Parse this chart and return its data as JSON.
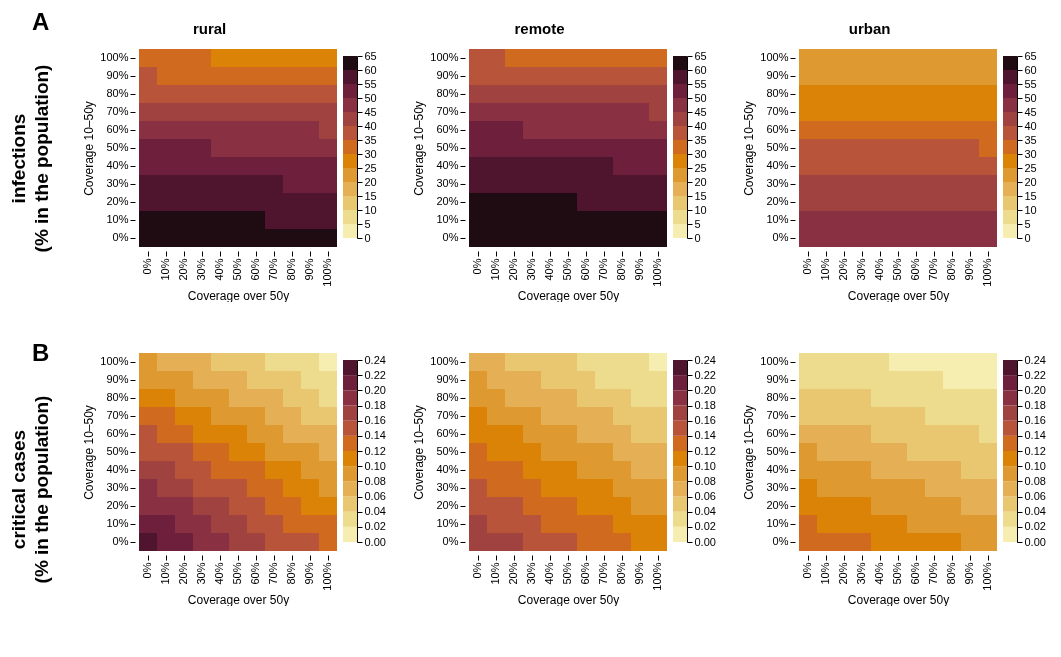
{
  "chart_data": [
    {
      "type": "heatmap",
      "title": "rural",
      "xlabel": "Coverage over 50y",
      "ylabel": "Coverage 10–50y",
      "annotations": [
        "A",
        "infections",
        "(% in the population)"
      ],
      "categories": [
        "0%",
        "10%",
        "20%",
        "30%",
        "40%",
        "50%",
        "60%",
        "70%",
        "80%",
        "90%",
        "100%"
      ],
      "y_categories": [
        "100%",
        "90%",
        "80%",
        "70%",
        "60%",
        "50%",
        "40%",
        "30%",
        "20%",
        "10%",
        "0%"
      ],
      "clim": [
        0,
        65
      ],
      "cticks": [
        0,
        5,
        10,
        15,
        20,
        25,
        30,
        35,
        40,
        45,
        50,
        55,
        60,
        65
      ],
      "colors": [
        "#f5eeb0",
        "#eedc8e",
        "#e9c670",
        "#e5b055",
        "#de9a30",
        "#da8307",
        "#d06a1e",
        "#b8543a",
        "#a0423f",
        "#8a3043",
        "#6d1f3b",
        "#4f142e",
        "#1f0c13"
      ],
      "cells": [
        [
          33,
          33,
          33,
          33,
          28,
          28,
          28,
          28,
          28,
          28,
          28
        ],
        [
          38,
          33,
          33,
          33,
          33,
          33,
          33,
          33,
          33,
          33,
          33
        ],
        [
          38,
          38,
          38,
          38,
          38,
          38,
          38,
          38,
          38,
          38,
          38
        ],
        [
          43,
          43,
          43,
          43,
          43,
          43,
          43,
          43,
          43,
          43,
          43
        ],
        [
          48,
          48,
          48,
          48,
          48,
          48,
          48,
          48,
          48,
          48,
          43
        ],
        [
          53,
          53,
          53,
          53,
          48,
          48,
          48,
          48,
          48,
          48,
          48
        ],
        [
          53,
          53,
          53,
          53,
          53,
          53,
          53,
          53,
          53,
          53,
          53
        ],
        [
          58,
          58,
          58,
          58,
          58,
          58,
          58,
          58,
          53,
          53,
          53
        ],
        [
          58,
          58,
          58,
          58,
          58,
          58,
          58,
          58,
          58,
          58,
          58
        ],
        [
          63,
          63,
          63,
          63,
          63,
          63,
          63,
          58,
          58,
          58,
          58
        ],
        [
          63,
          63,
          63,
          63,
          63,
          63,
          63,
          63,
          63,
          63,
          63
        ]
      ]
    },
    {
      "type": "heatmap",
      "title": "remote",
      "xlabel": "Coverage over 50y",
      "ylabel": "Coverage 10–50y",
      "categories": [
        "0%",
        "10%",
        "20%",
        "30%",
        "40%",
        "50%",
        "60%",
        "70%",
        "80%",
        "90%",
        "100%"
      ],
      "y_categories": [
        "100%",
        "90%",
        "80%",
        "70%",
        "60%",
        "50%",
        "40%",
        "30%",
        "20%",
        "10%",
        "0%"
      ],
      "clim": [
        0,
        65
      ],
      "cticks": [
        0,
        5,
        10,
        15,
        20,
        25,
        30,
        35,
        40,
        45,
        50,
        55,
        60,
        65
      ],
      "colors": [
        "#f5eeb0",
        "#eedc8e",
        "#e9c670",
        "#e5b055",
        "#de9a30",
        "#da8307",
        "#d06a1e",
        "#b8543a",
        "#a0423f",
        "#8a3043",
        "#6d1f3b",
        "#4f142e",
        "#1f0c13"
      ],
      "cells": [
        [
          38,
          38,
          33,
          33,
          33,
          33,
          33,
          33,
          33,
          33,
          33
        ],
        [
          38,
          38,
          38,
          38,
          38,
          38,
          38,
          38,
          38,
          38,
          38
        ],
        [
          43,
          43,
          43,
          43,
          43,
          43,
          43,
          43,
          43,
          43,
          43
        ],
        [
          48,
          48,
          48,
          48,
          48,
          48,
          48,
          48,
          48,
          48,
          43
        ],
        [
          53,
          53,
          53,
          48,
          48,
          48,
          48,
          48,
          48,
          48,
          48
        ],
        [
          53,
          53,
          53,
          53,
          53,
          53,
          53,
          53,
          53,
          53,
          53
        ],
        [
          58,
          58,
          58,
          58,
          58,
          58,
          58,
          58,
          53,
          53,
          53
        ],
        [
          58,
          58,
          58,
          58,
          58,
          58,
          58,
          58,
          58,
          58,
          58
        ],
        [
          63,
          63,
          63,
          63,
          63,
          63,
          58,
          58,
          58,
          58,
          58
        ],
        [
          63,
          63,
          63,
          63,
          63,
          63,
          63,
          63,
          63,
          63,
          63
        ],
        [
          63,
          63,
          63,
          63,
          63,
          63,
          63,
          63,
          63,
          63,
          63
        ]
      ]
    },
    {
      "type": "heatmap",
      "title": "urban",
      "xlabel": "Coverage over 50y",
      "ylabel": "Coverage 10–50y",
      "categories": [
        "0%",
        "10%",
        "20%",
        "30%",
        "40%",
        "50%",
        "60%",
        "70%",
        "80%",
        "90%",
        "100%"
      ],
      "y_categories": [
        "100%",
        "90%",
        "80%",
        "70%",
        "60%",
        "50%",
        "40%",
        "30%",
        "20%",
        "10%",
        "0%"
      ],
      "clim": [
        0,
        65
      ],
      "cticks": [
        0,
        5,
        10,
        15,
        20,
        25,
        30,
        35,
        40,
        45,
        50,
        55,
        60,
        65
      ],
      "colors": [
        "#f5eeb0",
        "#eedc8e",
        "#e9c670",
        "#e5b055",
        "#de9a30",
        "#da8307",
        "#d06a1e",
        "#b8543a",
        "#a0423f",
        "#8a3043",
        "#6d1f3b",
        "#4f142e",
        "#1f0c13"
      ],
      "cells": [
        [
          23,
          23,
          23,
          23,
          23,
          23,
          23,
          23,
          23,
          23,
          23
        ],
        [
          23,
          23,
          23,
          23,
          23,
          23,
          23,
          23,
          23,
          23,
          23
        ],
        [
          28,
          28,
          28,
          28,
          28,
          28,
          28,
          28,
          28,
          28,
          28
        ],
        [
          28,
          28,
          28,
          28,
          28,
          28,
          28,
          28,
          28,
          28,
          28
        ],
        [
          33,
          33,
          33,
          33,
          33,
          33,
          33,
          33,
          33,
          33,
          33
        ],
        [
          38,
          38,
          38,
          38,
          38,
          38,
          38,
          38,
          38,
          38,
          33
        ],
        [
          38,
          38,
          38,
          38,
          38,
          38,
          38,
          38,
          38,
          38,
          38
        ],
        [
          43,
          43,
          43,
          43,
          43,
          43,
          43,
          43,
          43,
          43,
          43
        ],
        [
          43,
          43,
          43,
          43,
          43,
          43,
          43,
          43,
          43,
          43,
          43
        ],
        [
          48,
          48,
          48,
          48,
          48,
          48,
          48,
          48,
          48,
          48,
          48
        ],
        [
          48,
          48,
          48,
          48,
          48,
          48,
          48,
          48,
          48,
          48,
          48
        ]
      ]
    },
    {
      "type": "heatmap",
      "xlabel": "Coverage over 50y",
      "ylabel": "Coverage 10–50y",
      "annotations": [
        "B",
        "critical cases",
        "(% in the population)"
      ],
      "categories": [
        "0%",
        "10%",
        "20%",
        "30%",
        "40%",
        "50%",
        "60%",
        "70%",
        "80%",
        "90%",
        "100%"
      ],
      "y_categories": [
        "100%",
        "90%",
        "80%",
        "70%",
        "60%",
        "50%",
        "40%",
        "30%",
        "20%",
        "10%",
        "0%"
      ],
      "clim": [
        0,
        0.24
      ],
      "cticks": [
        {
          "value": 0,
          "label": "0.00"
        },
        0.02,
        0.04,
        0.06,
        0.08,
        {
          "value": 0.1,
          "label": "0.10"
        },
        0.12,
        0.14,
        0.16,
        0.18,
        {
          "value": 0.2,
          "label": "0.20"
        },
        0.22,
        0.24
      ],
      "colors": [
        "#f5eeb0",
        "#eedc8e",
        "#e9c670",
        "#e5b055",
        "#de9a30",
        "#da8307",
        "#d06a1e",
        "#b8543a",
        "#a0423f",
        "#8a3043",
        "#6d1f3b",
        "#4f142e"
      ],
      "cells": [
        [
          0.09,
          0.07,
          0.07,
          0.07,
          0.05,
          0.05,
          0.05,
          0.03,
          0.03,
          0.03,
          0.01
        ],
        [
          0.09,
          0.09,
          0.09,
          0.07,
          0.07,
          0.07,
          0.05,
          0.05,
          0.05,
          0.03,
          0.03
        ],
        [
          0.11,
          0.11,
          0.09,
          0.09,
          0.09,
          0.07,
          0.07,
          0.07,
          0.05,
          0.05,
          0.03
        ],
        [
          0.13,
          0.13,
          0.11,
          0.11,
          0.09,
          0.09,
          0.09,
          0.07,
          0.07,
          0.05,
          0.05
        ],
        [
          0.15,
          0.13,
          0.13,
          0.11,
          0.11,
          0.11,
          0.09,
          0.09,
          0.07,
          0.07,
          0.07
        ],
        [
          0.15,
          0.15,
          0.15,
          0.13,
          0.13,
          0.11,
          0.11,
          0.09,
          0.09,
          0.09,
          0.07
        ],
        [
          0.17,
          0.17,
          0.15,
          0.15,
          0.13,
          0.13,
          0.13,
          0.11,
          0.11,
          0.09,
          0.09
        ],
        [
          0.19,
          0.17,
          0.17,
          0.15,
          0.15,
          0.15,
          0.13,
          0.13,
          0.11,
          0.11,
          0.09
        ],
        [
          0.19,
          0.19,
          0.19,
          0.17,
          0.17,
          0.15,
          0.15,
          0.13,
          0.13,
          0.11,
          0.11
        ],
        [
          0.21,
          0.21,
          0.19,
          0.19,
          0.17,
          0.17,
          0.15,
          0.15,
          0.13,
          0.13,
          0.13
        ],
        [
          0.23,
          0.21,
          0.21,
          0.19,
          0.19,
          0.17,
          0.17,
          0.15,
          0.15,
          0.15,
          0.13
        ]
      ]
    },
    {
      "type": "heatmap",
      "xlabel": "Coverage over 50y",
      "ylabel": "Coverage 10–50y",
      "categories": [
        "0%",
        "10%",
        "20%",
        "30%",
        "40%",
        "50%",
        "60%",
        "70%",
        "80%",
        "90%",
        "100%"
      ],
      "y_categories": [
        "100%",
        "90%",
        "80%",
        "70%",
        "60%",
        "50%",
        "40%",
        "30%",
        "20%",
        "10%",
        "0%"
      ],
      "clim": [
        0,
        0.24
      ],
      "cticks": [
        {
          "value": 0,
          "label": "0.00"
        },
        0.02,
        0.04,
        0.06,
        0.08,
        {
          "value": 0.1,
          "label": "0.10"
        },
        0.12,
        0.14,
        0.16,
        0.18,
        {
          "value": 0.2,
          "label": "0.20"
        },
        0.22,
        0.24
      ],
      "colors": [
        "#f5eeb0",
        "#eedc8e",
        "#e9c670",
        "#e5b055",
        "#de9a30",
        "#da8307",
        "#d06a1e",
        "#b8543a",
        "#a0423f",
        "#8a3043",
        "#6d1f3b",
        "#4f142e"
      ],
      "cells": [
        [
          0.07,
          0.07,
          0.05,
          0.05,
          0.05,
          0.05,
          0.03,
          0.03,
          0.03,
          0.03,
          0.01
        ],
        [
          0.09,
          0.07,
          0.07,
          0.07,
          0.05,
          0.05,
          0.05,
          0.03,
          0.03,
          0.03,
          0.03
        ],
        [
          0.09,
          0.09,
          0.07,
          0.07,
          0.07,
          0.07,
          0.05,
          0.05,
          0.05,
          0.03,
          0.03
        ],
        [
          0.11,
          0.09,
          0.09,
          0.09,
          0.07,
          0.07,
          0.07,
          0.07,
          0.05,
          0.05,
          0.05
        ],
        [
          0.11,
          0.11,
          0.11,
          0.09,
          0.09,
          0.09,
          0.07,
          0.07,
          0.07,
          0.05,
          0.05
        ],
        [
          0.13,
          0.11,
          0.11,
          0.11,
          0.09,
          0.09,
          0.09,
          0.09,
          0.07,
          0.07,
          0.07
        ],
        [
          0.13,
          0.13,
          0.13,
          0.11,
          0.11,
          0.11,
          0.09,
          0.09,
          0.09,
          0.07,
          0.07
        ],
        [
          0.15,
          0.13,
          0.13,
          0.13,
          0.11,
          0.11,
          0.11,
          0.11,
          0.09,
          0.09,
          0.09
        ],
        [
          0.15,
          0.15,
          0.15,
          0.13,
          0.13,
          0.13,
          0.11,
          0.11,
          0.11,
          0.09,
          0.09
        ],
        [
          0.17,
          0.15,
          0.15,
          0.15,
          0.13,
          0.13,
          0.13,
          0.13,
          0.11,
          0.11,
          0.11
        ],
        [
          0.17,
          0.17,
          0.17,
          0.15,
          0.15,
          0.15,
          0.13,
          0.13,
          0.13,
          0.11,
          0.11
        ]
      ]
    },
    {
      "type": "heatmap",
      "xlabel": "Coverage over 50y",
      "ylabel": "Coverage 10–50y",
      "categories": [
        "0%",
        "10%",
        "20%",
        "30%",
        "40%",
        "50%",
        "60%",
        "70%",
        "80%",
        "90%",
        "100%"
      ],
      "y_categories": [
        "100%",
        "90%",
        "80%",
        "70%",
        "60%",
        "50%",
        "40%",
        "30%",
        "20%",
        "10%",
        "0%"
      ],
      "clim": [
        0,
        0.24
      ],
      "cticks": [
        {
          "value": 0,
          "label": "0.00"
        },
        0.02,
        0.04,
        0.06,
        0.08,
        {
          "value": 0.1,
          "label": "0.10"
        },
        0.12,
        0.14,
        0.16,
        0.18,
        {
          "value": 0.2,
          "label": "0.20"
        },
        0.22,
        0.24
      ],
      "colors": [
        "#f5eeb0",
        "#eedc8e",
        "#e9c670",
        "#e5b055",
        "#de9a30",
        "#da8307",
        "#d06a1e",
        "#b8543a",
        "#a0423f",
        "#8a3043",
        "#6d1f3b",
        "#4f142e"
      ],
      "cells": [
        [
          0.03,
          0.03,
          0.03,
          0.03,
          0.03,
          0.01,
          0.01,
          0.01,
          0.01,
          0.01,
          0.01
        ],
        [
          0.03,
          0.03,
          0.03,
          0.03,
          0.03,
          0.03,
          0.03,
          0.03,
          0.01,
          0.01,
          0.01
        ],
        [
          0.05,
          0.05,
          0.05,
          0.05,
          0.03,
          0.03,
          0.03,
          0.03,
          0.03,
          0.03,
          0.03
        ],
        [
          0.05,
          0.05,
          0.05,
          0.05,
          0.05,
          0.05,
          0.05,
          0.03,
          0.03,
          0.03,
          0.03
        ],
        [
          0.07,
          0.07,
          0.07,
          0.07,
          0.05,
          0.05,
          0.05,
          0.05,
          0.05,
          0.05,
          0.03
        ],
        [
          0.09,
          0.07,
          0.07,
          0.07,
          0.07,
          0.07,
          0.05,
          0.05,
          0.05,
          0.05,
          0.05
        ],
        [
          0.09,
          0.09,
          0.09,
          0.09,
          0.07,
          0.07,
          0.07,
          0.07,
          0.07,
          0.05,
          0.05
        ],
        [
          0.11,
          0.09,
          0.09,
          0.09,
          0.09,
          0.09,
          0.09,
          0.07,
          0.07,
          0.07,
          0.07
        ],
        [
          0.11,
          0.11,
          0.11,
          0.11,
          0.09,
          0.09,
          0.09,
          0.09,
          0.09,
          0.07,
          0.07
        ],
        [
          0.13,
          0.11,
          0.11,
          0.11,
          0.11,
          0.11,
          0.09,
          0.09,
          0.09,
          0.09,
          0.09
        ],
        [
          0.13,
          0.13,
          0.13,
          0.13,
          0.11,
          0.11,
          0.11,
          0.11,
          0.11,
          0.09,
          0.09
        ]
      ]
    }
  ]
}
